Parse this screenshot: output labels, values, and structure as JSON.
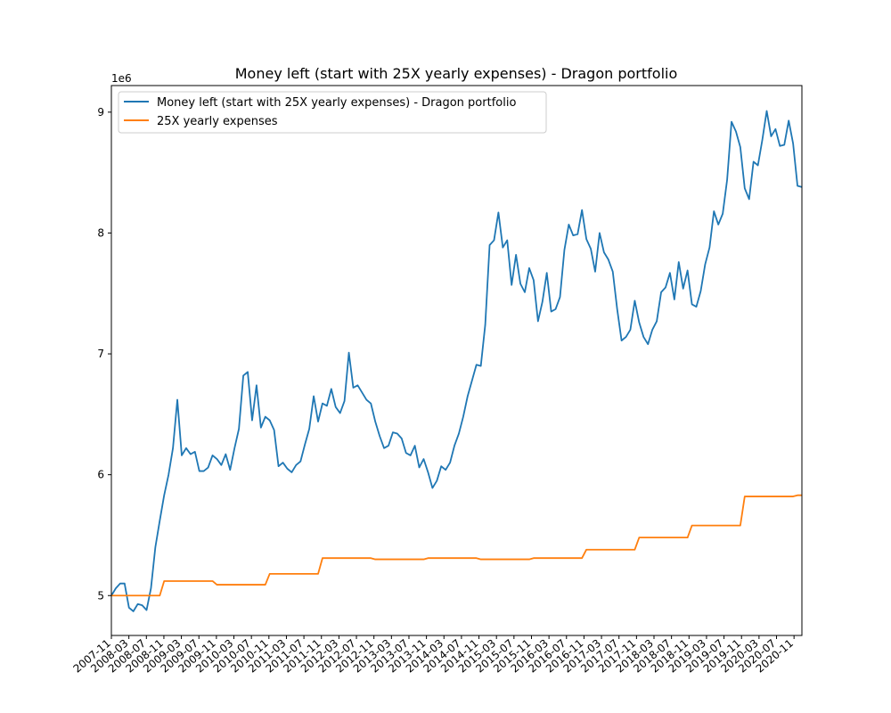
{
  "chart_data": {
    "type": "line",
    "title": "Money left (start with 25X yearly expenses) - Dragon portfolio",
    "xlabel": "",
    "ylabel": "",
    "y_multiplier_label": "1e6",
    "ylim": [
      4.67,
      9.22
    ],
    "y_ticks": [
      5,
      6,
      7,
      8,
      9
    ],
    "legend_position": "upper-left",
    "grid": false,
    "x_tick_labels": [
      "2007-11",
      "2008-03",
      "2008-07",
      "2008-11",
      "2009-03",
      "2009-07",
      "2009-11",
      "2010-03",
      "2010-07",
      "2010-11",
      "2011-03",
      "2011-07",
      "2011-11",
      "2012-03",
      "2012-07",
      "2012-11",
      "2013-03",
      "2013-07",
      "2013-11",
      "2014-03",
      "2014-07",
      "2014-11",
      "2015-03",
      "2015-07",
      "2015-11",
      "2016-03",
      "2016-07",
      "2016-11",
      "2017-03",
      "2017-07",
      "2017-11",
      "2018-03",
      "2018-07",
      "2018-11",
      "2019-03",
      "2019-07",
      "2019-11",
      "2020-03",
      "2020-07",
      "2020-11"
    ],
    "series": [
      {
        "name": "Money left (start with 25X yearly expenses) - Dragon portfolio",
        "color": "#1f77b4",
        "values": [
          5.0,
          5.06,
          5.1,
          5.1,
          4.9,
          4.87,
          4.93,
          4.92,
          4.88,
          5.06,
          5.4,
          5.62,
          5.83,
          6.0,
          6.22,
          6.62,
          6.16,
          6.22,
          6.17,
          6.19,
          6.03,
          6.03,
          6.06,
          6.16,
          6.13,
          6.08,
          6.17,
          6.04,
          6.22,
          6.38,
          6.82,
          6.85,
          6.45,
          6.74,
          6.39,
          6.48,
          6.45,
          6.37,
          6.07,
          6.1,
          6.05,
          6.02,
          6.08,
          6.11,
          6.25,
          6.38,
          6.65,
          6.44,
          6.59,
          6.57,
          6.71,
          6.56,
          6.51,
          6.61,
          7.01,
          6.72,
          6.74,
          6.68,
          6.62,
          6.59,
          6.44,
          6.32,
          6.22,
          6.24,
          6.35,
          6.34,
          6.3,
          6.18,
          6.16,
          6.24,
          6.06,
          6.13,
          6.02,
          5.89,
          5.95,
          6.07,
          6.04,
          6.1,
          6.24,
          6.34,
          6.48,
          6.65,
          6.78,
          6.91,
          6.9,
          7.24,
          7.9,
          7.94,
          8.17,
          7.88,
          7.94,
          7.57,
          7.82,
          7.58,
          7.51,
          7.71,
          7.61,
          7.27,
          7.43,
          7.67,
          7.35,
          7.37,
          7.47,
          7.86,
          8.07,
          7.98,
          7.99,
          8.19,
          7.95,
          7.87,
          7.68,
          8.0,
          7.84,
          7.78,
          7.68,
          7.37,
          7.11,
          7.14,
          7.2,
          7.44,
          7.26,
          7.14,
          7.08,
          7.2,
          7.27,
          7.51,
          7.55,
          7.67,
          7.45,
          7.76,
          7.54,
          7.69,
          7.41,
          7.39,
          7.52,
          7.74,
          7.88,
          8.18,
          8.07,
          8.16,
          8.44,
          8.92,
          8.84,
          8.71,
          8.37,
          8.28,
          8.59,
          8.56,
          8.77,
          9.01,
          8.8,
          8.86,
          8.72,
          8.73,
          8.93,
          8.74,
          8.39,
          8.38
        ]
      },
      {
        "name": "25X yearly expenses",
        "color": "#ff7f0e",
        "values": [
          5.0,
          5.0,
          5.0,
          5.0,
          5.0,
          5.0,
          5.0,
          5.0,
          5.0,
          5.0,
          5.0,
          5.0,
          5.12,
          5.12,
          5.12,
          5.12,
          5.12,
          5.12,
          5.12,
          5.12,
          5.12,
          5.12,
          5.12,
          5.12,
          5.09,
          5.09,
          5.09,
          5.09,
          5.09,
          5.09,
          5.09,
          5.09,
          5.09,
          5.09,
          5.09,
          5.09,
          5.18,
          5.18,
          5.18,
          5.18,
          5.18,
          5.18,
          5.18,
          5.18,
          5.18,
          5.18,
          5.18,
          5.18,
          5.31,
          5.31,
          5.31,
          5.31,
          5.31,
          5.31,
          5.31,
          5.31,
          5.31,
          5.31,
          5.31,
          5.31,
          5.3,
          5.3,
          5.3,
          5.3,
          5.3,
          5.3,
          5.3,
          5.3,
          5.3,
          5.3,
          5.3,
          5.3,
          5.31,
          5.31,
          5.31,
          5.31,
          5.31,
          5.31,
          5.31,
          5.31,
          5.31,
          5.31,
          5.31,
          5.31,
          5.3,
          5.3,
          5.3,
          5.3,
          5.3,
          5.3,
          5.3,
          5.3,
          5.3,
          5.3,
          5.3,
          5.3,
          5.31,
          5.31,
          5.31,
          5.31,
          5.31,
          5.31,
          5.31,
          5.31,
          5.31,
          5.31,
          5.31,
          5.31,
          5.38,
          5.38,
          5.38,
          5.38,
          5.38,
          5.38,
          5.38,
          5.38,
          5.38,
          5.38,
          5.38,
          5.38,
          5.48,
          5.48,
          5.48,
          5.48,
          5.48,
          5.48,
          5.48,
          5.48,
          5.48,
          5.48,
          5.48,
          5.48,
          5.58,
          5.58,
          5.58,
          5.58,
          5.58,
          5.58,
          5.58,
          5.58,
          5.58,
          5.58,
          5.58,
          5.58,
          5.82,
          5.82,
          5.82,
          5.82,
          5.82,
          5.82,
          5.82,
          5.82,
          5.82,
          5.82,
          5.82,
          5.82,
          5.83,
          5.83
        ]
      }
    ]
  }
}
